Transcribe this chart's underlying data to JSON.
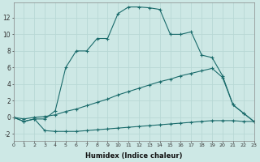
{
  "xlabel": "Humidex (Indice chaleur)",
  "xlim": [
    0,
    23
  ],
  "ylim": [
    -2.8,
    13.8
  ],
  "yticks": [
    -2,
    0,
    2,
    4,
    6,
    8,
    10,
    12
  ],
  "bg_color": "#cde8e5",
  "line_color": "#1a6b6b",
  "grid_color": "#b8d8d5",
  "line1_x": [
    0,
    1,
    2,
    3,
    4,
    5,
    6,
    7,
    8,
    9,
    10,
    11,
    12,
    13,
    14,
    15,
    16,
    17,
    18,
    19,
    20,
    21,
    22,
    23
  ],
  "line1_y": [
    0.0,
    -0.5,
    -0.2,
    -0.2,
    0.8,
    6.0,
    8.0,
    8.0,
    9.5,
    9.5,
    12.5,
    13.3,
    13.3,
    13.2,
    13.0,
    10.0,
    10.0,
    10.3,
    7.5,
    7.2,
    5.0,
    1.5,
    0.5,
    -0.5
  ],
  "line2_x": [
    0,
    1,
    2,
    3,
    4,
    5,
    6,
    7,
    8,
    9,
    10,
    11,
    12,
    13,
    14,
    15,
    16,
    17,
    18,
    19,
    20,
    21,
    22,
    23
  ],
  "line2_y": [
    0.0,
    -0.2,
    0.0,
    0.1,
    0.3,
    0.7,
    1.0,
    1.4,
    1.8,
    2.2,
    2.7,
    3.1,
    3.5,
    3.9,
    4.3,
    4.6,
    5.0,
    5.3,
    5.6,
    5.9,
    4.8,
    1.5,
    0.5,
    -0.5
  ],
  "line3_x": [
    0,
    1,
    2,
    3,
    4,
    5,
    6,
    7,
    8,
    9,
    10,
    11,
    12,
    13,
    14,
    15,
    16,
    17,
    18,
    19,
    20,
    21,
    22,
    23
  ],
  "line3_y": [
    0.0,
    -0.5,
    -0.2,
    -1.6,
    -1.7,
    -1.7,
    -1.7,
    -1.6,
    -1.5,
    -1.4,
    -1.3,
    -1.2,
    -1.1,
    -1.0,
    -0.9,
    -0.8,
    -0.7,
    -0.6,
    -0.5,
    -0.4,
    -0.4,
    -0.4,
    -0.5,
    -0.5
  ]
}
